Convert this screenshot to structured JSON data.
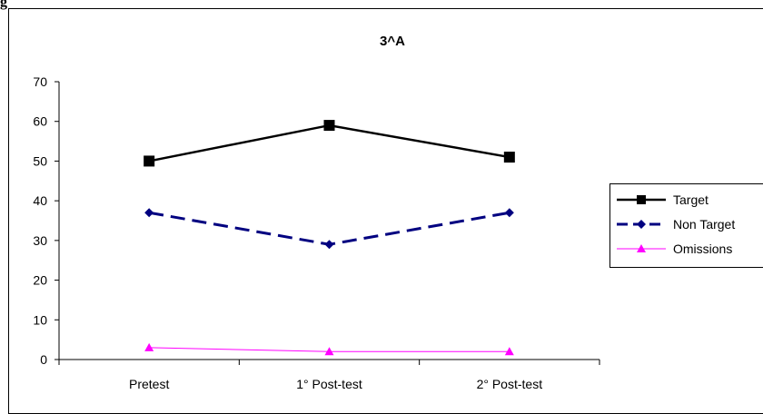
{
  "header_fragment": "g",
  "chart_data": {
    "type": "line",
    "title": "3^A",
    "xlabel": "",
    "ylabel": "",
    "categories": [
      "Pretest",
      "1° Post-test",
      "2° Post-test"
    ],
    "ylim": [
      0,
      70
    ],
    "yticks": [
      0,
      10,
      20,
      30,
      40,
      50,
      60,
      70
    ],
    "grid": false,
    "legend_position": "right",
    "series": [
      {
        "name": "Target",
        "values": [
          50,
          59,
          51
        ],
        "color": "#000000",
        "line_style": "solid",
        "marker": "square"
      },
      {
        "name": "Non Target",
        "values": [
          37,
          29,
          37
        ],
        "color": "#000080",
        "line_style": "dashed",
        "marker": "diamond"
      },
      {
        "name": "Omissions",
        "values": [
          3,
          2,
          2
        ],
        "color": "#ff00ff",
        "line_style": "solid",
        "marker": "triangle"
      }
    ]
  }
}
